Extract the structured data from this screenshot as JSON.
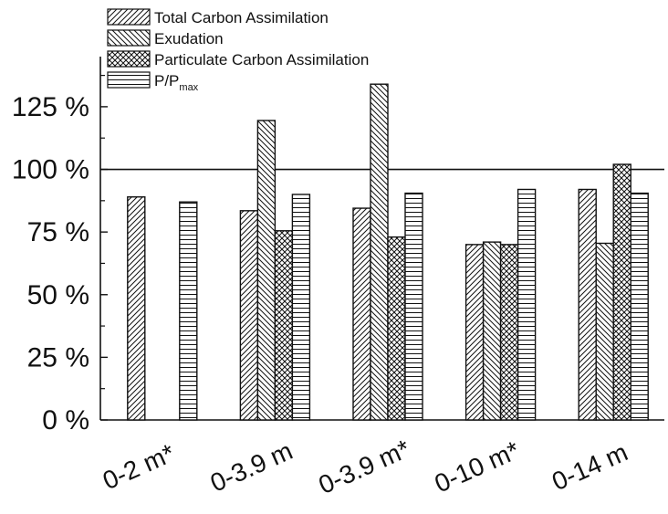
{
  "chart_data": {
    "type": "bar",
    "categories": [
      "0-2 m*",
      "0-3.9 m",
      "0-3.9 m*",
      "0-10 m*",
      "0-14 m"
    ],
    "series": [
      {
        "name": "Total Carbon Assimilation",
        "pattern": "diag-fwd",
        "values": [
          89,
          83.5,
          84.5,
          70,
          92
        ]
      },
      {
        "name": "Exudation",
        "pattern": "diag-back",
        "values": [
          null,
          119.5,
          134,
          71,
          70.5
        ]
      },
      {
        "name": "Particulate Carbon Assimilation",
        "pattern": "crosshatch",
        "values": [
          null,
          75.5,
          73,
          70,
          102
        ]
      },
      {
        "name": "P/P",
        "name_subscript": "max",
        "pattern": "horizontal",
        "values": [
          87,
          90,
          90.5,
          92,
          90.5
        ]
      }
    ],
    "yticks": [
      "0 %",
      "25 %",
      "50 %",
      "75 %",
      "100 %",
      "125 %"
    ],
    "ytick_values": [
      0,
      25,
      50,
      75,
      100,
      125
    ],
    "ylim": [
      0,
      145
    ],
    "reference_line": 100,
    "legend_position": "top-left",
    "title": "",
    "xlabel": "",
    "ylabel": "",
    "colors": {
      "ink": "#111111",
      "fill": "#ffffff"
    }
  }
}
